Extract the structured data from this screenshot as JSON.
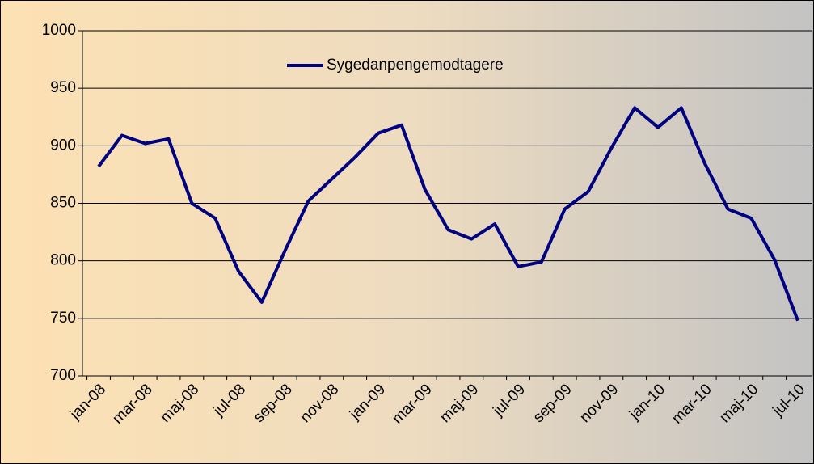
{
  "chart_data": {
    "type": "line",
    "categories": [
      "jan-08",
      null,
      "mar-08",
      null,
      "maj-08",
      null,
      "jul-08",
      null,
      "sep-08",
      null,
      "nov-08",
      null,
      "jan-09",
      null,
      "mar-09",
      null,
      "maj-09",
      null,
      "jul-09",
      null,
      "sep-09",
      null,
      "nov-09",
      null,
      "jan-10",
      null,
      "mar-10",
      null,
      "maj-10",
      null,
      "jul-10"
    ],
    "series": [
      {
        "name": "Sygedanpengemodtagere",
        "color": "#000080",
        "values": [
          882,
          909,
          902,
          906,
          850,
          837,
          791,
          764,
          809,
          852,
          871,
          890,
          911,
          918,
          862,
          827,
          819,
          832,
          795,
          799,
          845,
          860,
          898,
          933,
          916,
          933,
          885,
          845,
          837,
          801,
          748
        ]
      }
    ],
    "ylim": [
      700,
      1000
    ],
    "yticks": [
      700,
      750,
      800,
      850,
      900,
      950,
      1000
    ],
    "grid": true,
    "legend": "top"
  }
}
